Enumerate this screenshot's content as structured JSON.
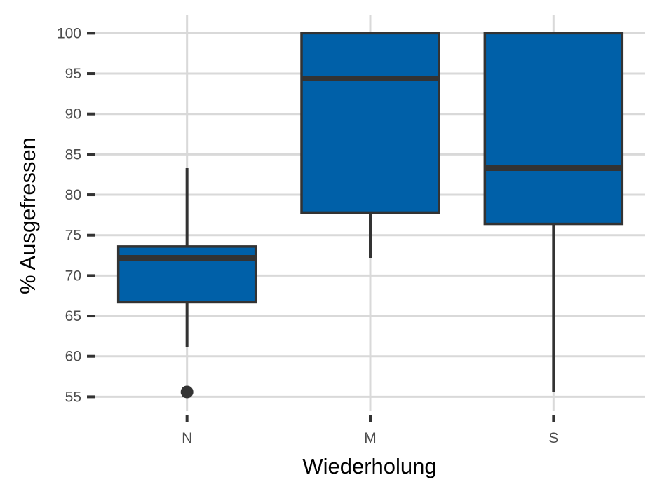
{
  "chart_data": {
    "type": "boxplot",
    "xlabel": "Wiederholung",
    "ylabel": "% Ausgefressen",
    "categories": [
      "N",
      "M",
      "S"
    ],
    "ylim": [
      53.3,
      102.2
    ],
    "y_ticks": [
      55,
      60,
      65,
      70,
      75,
      80,
      85,
      90,
      95,
      100
    ],
    "y_tick_labels": [
      "55",
      "60",
      "65",
      "70",
      "75",
      "80",
      "85",
      "90",
      "95",
      "100"
    ],
    "grid": true,
    "legend": "none",
    "colors": {
      "box_fill": "#0060A8",
      "box_stroke": "#333333",
      "grid": "#d9d9d9"
    },
    "boxes": [
      {
        "category": "N",
        "lower_whisker": 61.1,
        "q1": 66.7,
        "median": 72.2,
        "q3": 73.6,
        "upper_whisker": 83.3,
        "outliers": [
          55.6
        ]
      },
      {
        "category": "M",
        "lower_whisker": 72.2,
        "q1": 77.8,
        "median": 94.4,
        "q3": 100,
        "upper_whisker": 100,
        "outliers": []
      },
      {
        "category": "S",
        "lower_whisker": 55.6,
        "q1": 76.4,
        "median": 83.3,
        "q3": 100,
        "upper_whisker": 100,
        "outliers": []
      }
    ]
  }
}
